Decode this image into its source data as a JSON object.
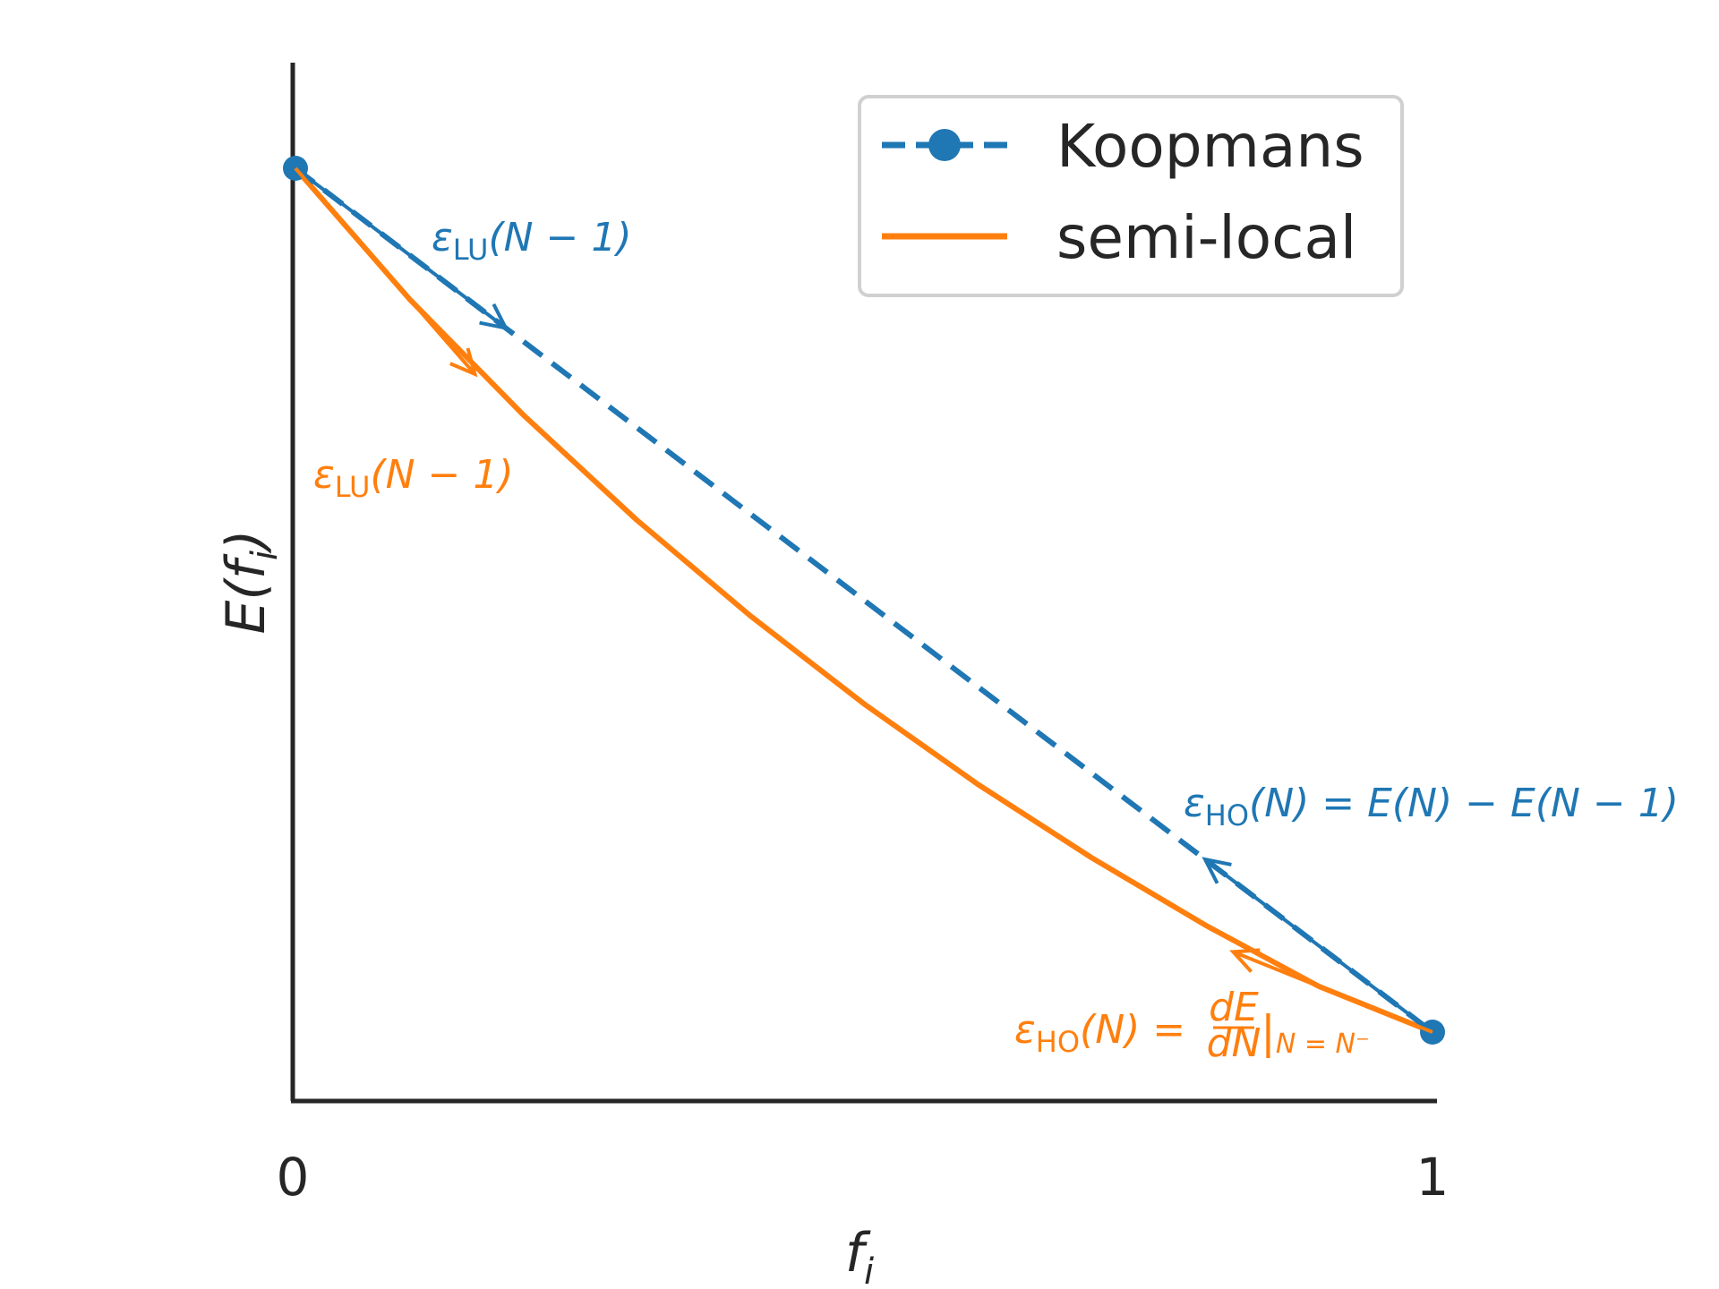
{
  "colors": {
    "koopmans": "#1f77b4",
    "semilocal": "#ff7f0e",
    "axis": "#262626"
  },
  "chart_data": {
    "type": "line",
    "xlabel_main": "f",
    "xlabel_sub": "i",
    "ylabel_main": "E(",
    "ylabel_f": "f",
    "ylabel_sub": "i",
    "ylabel_close": ")",
    "xlim": [
      0,
      1
    ],
    "xticks": [
      "0",
      "1"
    ],
    "yticks": [],
    "legend_position": "top-right",
    "series": [
      {
        "name": "Koopmans",
        "style": "dashed-with-markers",
        "x": [
          0,
          1
        ],
        "y": [
          1.0,
          0.0
        ]
      },
      {
        "name": "semi-local",
        "style": "solid",
        "x": [
          0,
          0.1,
          0.2,
          0.3,
          0.4,
          0.5,
          0.6,
          0.7,
          0.8,
          0.9,
          1.0
        ],
        "y": [
          1.0,
          0.849,
          0.715,
          0.593,
          0.482,
          0.38,
          0.287,
          0.202,
          0.124,
          0.053,
          0.0
        ]
      }
    ],
    "annotations": [
      {
        "id": "koop_lu",
        "series": "Koopmans",
        "eps": "ε",
        "sub": "LU",
        "rest": "(N − 1)"
      },
      {
        "id": "semi_lu",
        "series": "semi-local",
        "eps": "ε",
        "sub": "LU",
        "rest": "(N − 1)"
      },
      {
        "id": "koop_ho",
        "series": "Koopmans",
        "eps": "ε",
        "sub": "HO",
        "rest": "(N) = E(N) − E(N − 1)"
      },
      {
        "id": "semi_ho",
        "series": "semi-local",
        "eps": "ε",
        "sub": "HO",
        "rest": "(N) = ",
        "frac_num": "dE",
        "frac_den": "dN",
        "eval": "|",
        "eval_sub": "N = N⁻"
      }
    ]
  }
}
